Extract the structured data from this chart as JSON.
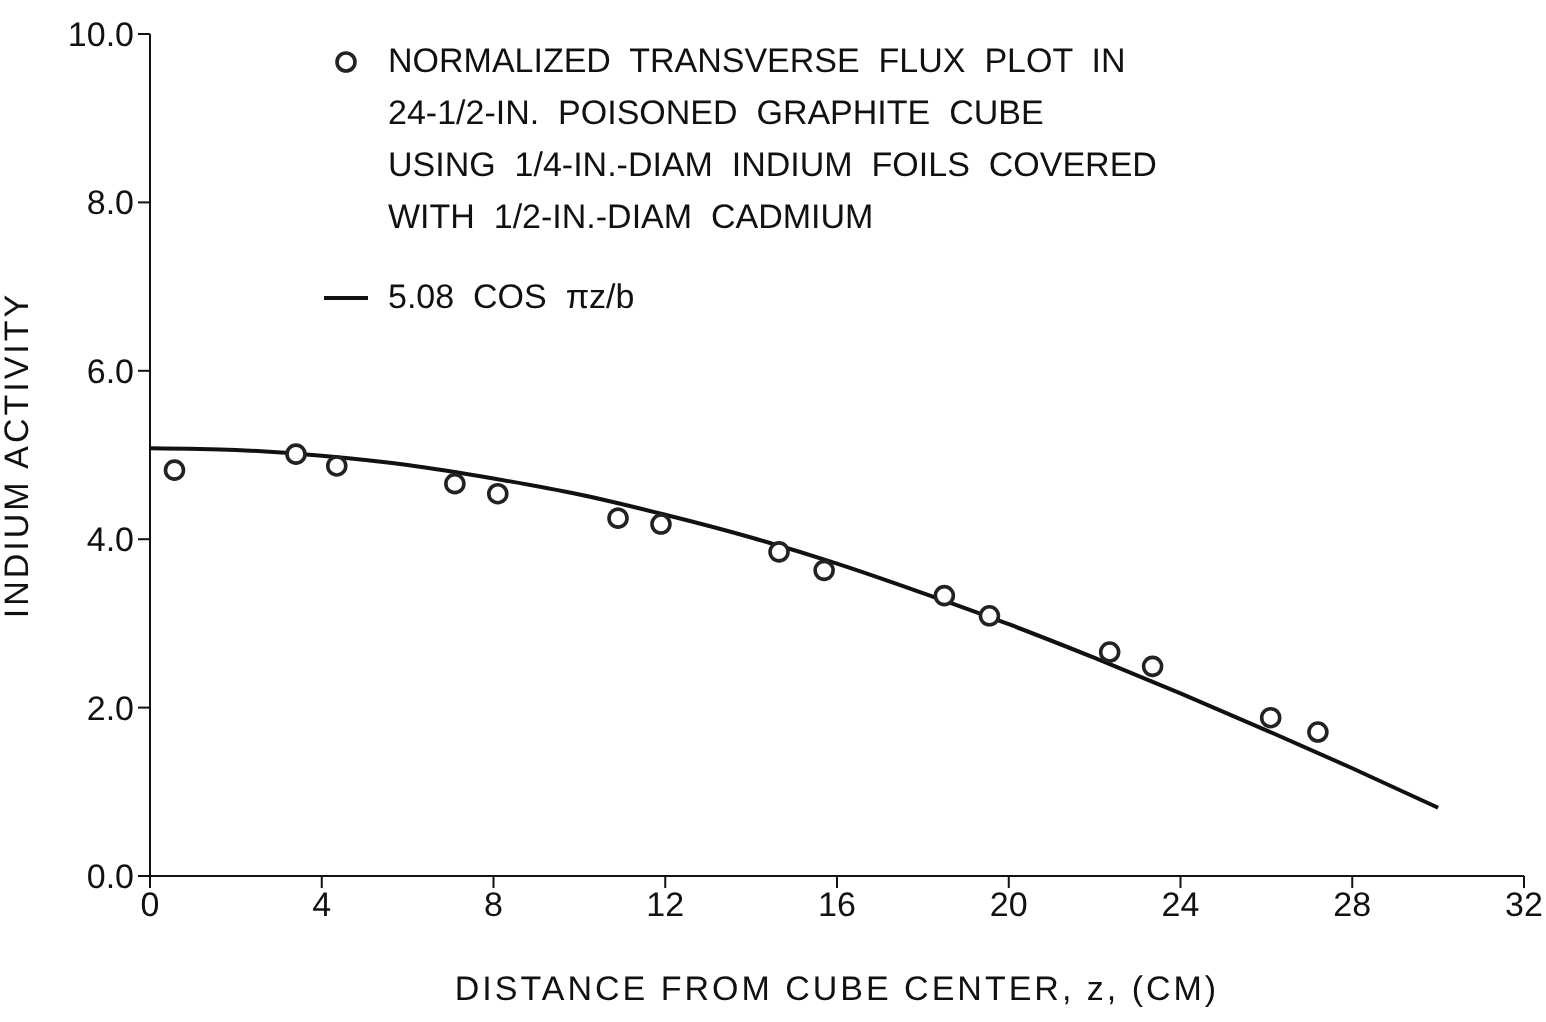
{
  "chart_data": {
    "type": "scatter",
    "xlabel": "DISTANCE FROM CUBE CENTER, z, (CM)",
    "ylabel": "INDIUM ACTIVITY",
    "xlim": [
      0,
      32
    ],
    "xticks": [
      0,
      4,
      8,
      12,
      16,
      20,
      24,
      28,
      32
    ],
    "ylim": [
      0,
      10
    ],
    "yticks": [
      {
        "value": 0,
        "label": "0.0"
      },
      {
        "value": 2,
        "label": "2.0"
      },
      {
        "value": 4,
        "label": "4.0"
      },
      {
        "value": 6,
        "label": "6.0"
      },
      {
        "value": 8,
        "label": "8.0"
      },
      {
        "value": 10,
        "label": "10.0"
      }
    ],
    "grid": false,
    "legend": "top",
    "series": [
      {
        "marker": "circle",
        "name": "NORMALIZED  TRANSVERSE  FLUX  PLOT  IN\n24-1/2-IN.  POISONED  GRAPHITE  CUBE\nUSING  1/4-IN.-DIAM  INDIUM  FOILS  COVERED\nWITH  1/2-IN.-DIAM  CADMIUM",
        "color": "#222222",
        "x": [
          0.57,
          3.4,
          4.35,
          7.1,
          8.1,
          10.9,
          11.9,
          14.65,
          15.7,
          18.5,
          19.55,
          22.35,
          23.35,
          26.1,
          27.2
        ],
        "values": [
          4.82,
          5.01,
          4.87,
          4.66,
          4.54,
          4.25,
          4.18,
          3.85,
          3.63,
          3.33,
          3.09,
          2.66,
          2.49,
          1.88,
          1.71
        ]
      },
      {
        "type": "line",
        "marker": "none",
        "name": "5.08  COS  πz/b",
        "color": "#111111",
        "x": [
          0,
          2,
          4,
          6,
          8,
          10,
          12,
          14,
          16,
          18,
          20,
          22,
          24,
          26,
          28,
          30
        ],
        "values": [
          5.08,
          5.06,
          4.99,
          4.88,
          4.72,
          4.53,
          4.29,
          4.02,
          3.71,
          3.36,
          2.99,
          2.59,
          2.17,
          1.73,
          1.28,
          0.81
        ]
      }
    ]
  }
}
